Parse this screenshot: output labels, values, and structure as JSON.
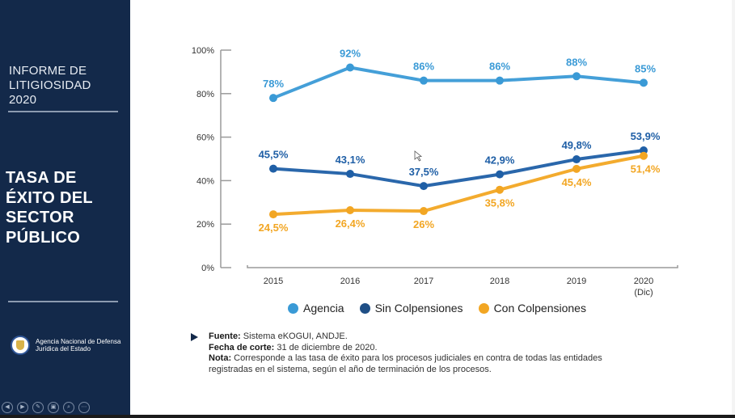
{
  "sidebar": {
    "report_title_lines": [
      "INFORME DE",
      "LITIGIOSIDAD",
      "2020"
    ],
    "section_title_lines": [
      "TASA DE",
      "ÉXITO DEL",
      "SECTOR",
      "PÚBLICO"
    ],
    "agency_name_lines": [
      "Agencia Nacional de Defensa",
      "Jurídica del Estado"
    ],
    "controls": [
      {
        "name": "previous-slide-button",
        "icon": "◀"
      },
      {
        "name": "next-slide-button",
        "icon": "▶"
      },
      {
        "name": "pen-button",
        "icon": "✎"
      },
      {
        "name": "slides-grid-button",
        "icon": "▣"
      },
      {
        "name": "zoom-button",
        "icon": "⌕"
      },
      {
        "name": "more-options-button",
        "icon": "⋯"
      }
    ]
  },
  "chart_data": {
    "type": "line",
    "title": "",
    "xlabel": "",
    "ylabel": "",
    "categories": [
      "2015",
      "2016",
      "2017",
      "2018",
      "2019",
      "2020\n(Dic)"
    ],
    "category_lines": [
      [
        "2015"
      ],
      [
        "2016"
      ],
      [
        "2017"
      ],
      [
        "2018"
      ],
      [
        "2019"
      ],
      [
        "2020",
        "(Dic)"
      ]
    ],
    "yticks": [
      "0%",
      "20%",
      "40%",
      "60%",
      "80%",
      "100%"
    ],
    "ylim": [
      0,
      100
    ],
    "grid": false,
    "legend_position": "bottom",
    "series": [
      {
        "name": "Agencia",
        "color": "#3a9ad6",
        "values": [
          78,
          92,
          86,
          86,
          88,
          85
        ],
        "labels": [
          "78%",
          "92%",
          "86%",
          "86%",
          "88%",
          "85%"
        ],
        "label_position": "above"
      },
      {
        "name": "Sin Colpensiones",
        "color": "#1f5fa6",
        "values": [
          45.5,
          43.1,
          37.5,
          42.9,
          49.8,
          53.9
        ],
        "labels": [
          "45,5%",
          "43,1%",
          "37,5%",
          "42,9%",
          "49,8%",
          "53,9%"
        ],
        "label_position": "above"
      },
      {
        "name": "Con Colpensiones",
        "color": "#f2a623",
        "values": [
          24.5,
          26.4,
          26,
          35.8,
          45.4,
          51.4
        ],
        "labels": [
          "24,5%",
          "26,4%",
          "26%",
          "35,8%",
          "45,4%",
          "51,4%"
        ],
        "label_position": "below"
      }
    ]
  },
  "legend": {
    "items": [
      {
        "label": "Agencia",
        "color": "#3a9ad6"
      },
      {
        "label": "Sin Colpensiones",
        "color": "#1f4f86"
      },
      {
        "label": "Con Colpensiones",
        "color": "#f2a623"
      }
    ]
  },
  "notes": {
    "source_label": "Fuente:",
    "source_text": " Sistema eKOGUI, ANDJE.",
    "cutoff_label": "Fecha de corte:",
    "cutoff_text": " 31 de diciembre de 2020.",
    "note_label": "Nota:",
    "note_text_line1": " Corresponde a las tasa de éxito para los procesos judiciales en contra de todas las entidades",
    "note_text_line2": "registradas en el sistema, según el año de terminación de los procesos."
  }
}
